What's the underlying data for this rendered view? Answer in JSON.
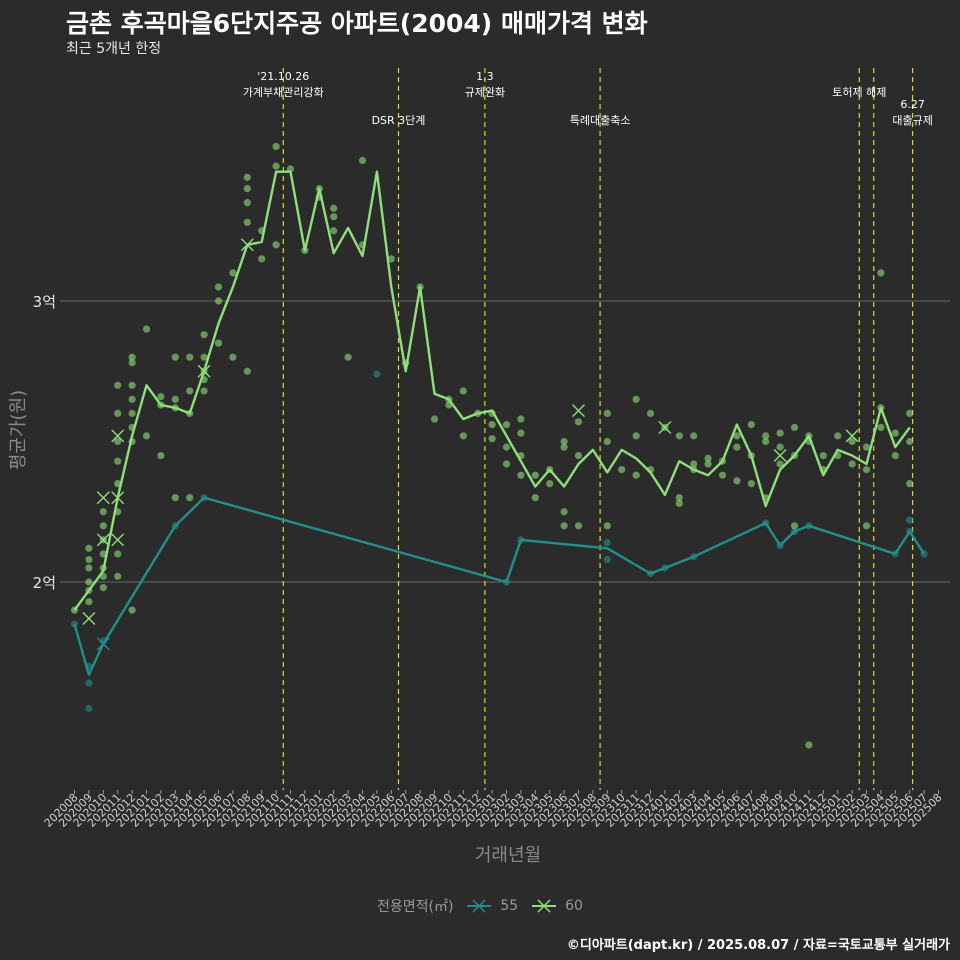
{
  "header": {
    "title": "금촌 후곡마을6단지주공 아파트(2004) 매매가격 변화",
    "subtitle": "최근 5개년 한정"
  },
  "caption": "©디아파트(dapt.kr) / 2025.08.07 / 자료=국토교통부 실거래가",
  "legend": {
    "title": "전용면적(㎡)"
  },
  "colors": {
    "background": "#2b2b2b",
    "s55": "#21908d",
    "s60": "#8fe07a",
    "event_line": "#d8dc2a",
    "grid": "#6a6a6a"
  },
  "chart_data": {
    "type": "line",
    "xlabel": "거래년월",
    "ylabel": "평균가(원)",
    "x": [
      "202008",
      "202009",
      "202010",
      "202011",
      "202012",
      "202101",
      "202102",
      "202103",
      "202104",
      "202105",
      "202106",
      "202107",
      "202108",
      "202109",
      "202110",
      "202111",
      "202112",
      "202201",
      "202202",
      "202203",
      "202204",
      "202205",
      "202206",
      "202207",
      "202208",
      "202209",
      "202210",
      "202211",
      "202212",
      "202301",
      "202302",
      "202303",
      "202304",
      "202305",
      "202306",
      "202307",
      "202308",
      "202309",
      "202310",
      "202311",
      "202312",
      "202401",
      "202402",
      "202403",
      "202404",
      "202405",
      "202406",
      "202407",
      "202408",
      "202409",
      "202410",
      "202411",
      "202412",
      "202501",
      "202502",
      "202503",
      "202504",
      "202505",
      "202506",
      "202507",
      "202508"
    ],
    "ylim": [
      1.25,
      3.55
    ],
    "yticks": [
      {
        "value": 2,
        "label": "2억"
      },
      {
        "value": 3,
        "label": "3억"
      }
    ],
    "grid": true,
    "legend_position": "bottom",
    "series": [
      {
        "name": "55",
        "points": [
          [
            0,
            1.85
          ],
          [
            1,
            1.67
          ],
          [
            2,
            1.78
          ],
          [
            7,
            2.2
          ],
          [
            9,
            2.3
          ],
          [
            30,
            2.0
          ],
          [
            31,
            2.15
          ],
          [
            37,
            2.12
          ],
          [
            40,
            2.03
          ],
          [
            41,
            2.05
          ],
          [
            43,
            2.09
          ],
          [
            48,
            2.21
          ],
          [
            49,
            2.13
          ],
          [
            50,
            2.18
          ],
          [
            51,
            2.2
          ],
          [
            57,
            2.1
          ],
          [
            58,
            2.18
          ],
          [
            59,
            2.1
          ]
        ],
        "scatter": [
          [
            0,
            1.85
          ],
          [
            1,
            1.64
          ],
          [
            1,
            1.55
          ],
          [
            1,
            1.7
          ],
          [
            2,
            1.79
          ],
          [
            7,
            2.2
          ],
          [
            9,
            2.3
          ],
          [
            21,
            2.74
          ],
          [
            30,
            2.0
          ],
          [
            31,
            2.15
          ],
          [
            37,
            2.14
          ],
          [
            37,
            2.08
          ],
          [
            40,
            2.03
          ],
          [
            41,
            2.05
          ],
          [
            43,
            2.09
          ],
          [
            48,
            2.21
          ],
          [
            49,
            2.13
          ],
          [
            50,
            2.18
          ],
          [
            51,
            2.2
          ],
          [
            57,
            2.1
          ],
          [
            58,
            2.18
          ],
          [
            58,
            2.22
          ],
          [
            59,
            2.1
          ]
        ],
        "cross": [
          [
            2,
            1.78
          ]
        ]
      },
      {
        "name": "60",
        "points": [
          [
            0,
            1.9
          ],
          [
            1,
            1.97
          ],
          [
            2,
            2.04
          ],
          [
            3,
            2.3
          ],
          [
            4,
            2.52
          ],
          [
            5,
            2.7
          ],
          [
            6,
            2.63
          ],
          [
            7,
            2.62
          ],
          [
            8,
            2.6
          ],
          [
            9,
            2.75
          ],
          [
            10,
            2.92
          ],
          [
            11,
            3.05
          ],
          [
            12,
            3.2
          ],
          [
            13,
            3.21
          ],
          [
            14,
            3.46
          ],
          [
            15,
            3.46
          ],
          [
            16,
            3.18
          ],
          [
            17,
            3.4
          ],
          [
            18,
            3.17
          ],
          [
            19,
            3.26
          ],
          [
            20,
            3.16
          ],
          [
            21,
            3.46
          ],
          [
            22,
            3.05
          ],
          [
            23,
            2.75
          ],
          [
            24,
            3.05
          ],
          [
            25,
            2.67
          ],
          [
            26,
            2.65
          ],
          [
            27,
            2.58
          ],
          [
            28,
            2.6
          ],
          [
            29,
            2.61
          ],
          [
            30,
            2.52
          ],
          [
            31,
            2.43
          ],
          [
            32,
            2.34
          ],
          [
            33,
            2.4
          ],
          [
            34,
            2.34
          ],
          [
            35,
            2.42
          ],
          [
            36,
            2.47
          ],
          [
            37,
            2.39
          ],
          [
            38,
            2.47
          ],
          [
            39,
            2.44
          ],
          [
            40,
            2.39
          ],
          [
            41,
            2.31
          ],
          [
            42,
            2.43
          ],
          [
            43,
            2.4
          ],
          [
            44,
            2.38
          ],
          [
            45,
            2.43
          ],
          [
            46,
            2.56
          ],
          [
            47,
            2.45
          ],
          [
            48,
            2.27
          ],
          [
            49,
            2.4
          ],
          [
            50,
            2.45
          ],
          [
            51,
            2.52
          ],
          [
            52,
            2.38
          ],
          [
            53,
            2.47
          ],
          [
            54,
            2.45
          ],
          [
            55,
            2.42
          ],
          [
            56,
            2.62
          ],
          [
            57,
            2.48
          ],
          [
            58,
            2.55
          ]
        ],
        "scatter": [
          [
            0,
            1.9
          ],
          [
            1,
            1.93
          ],
          [
            1,
            1.97
          ],
          [
            1,
            2.0
          ],
          [
            1,
            2.05
          ],
          [
            1,
            2.08
          ],
          [
            1,
            2.12
          ],
          [
            2,
            1.98
          ],
          [
            2,
            2.02
          ],
          [
            2,
            2.05
          ],
          [
            2,
            2.1
          ],
          [
            2,
            2.15
          ],
          [
            2,
            2.2
          ],
          [
            2,
            2.25
          ],
          [
            3,
            2.02
          ],
          [
            3,
            2.1
          ],
          [
            3,
            2.25
          ],
          [
            3,
            2.35
          ],
          [
            3,
            2.43
          ],
          [
            3,
            2.5
          ],
          [
            3,
            2.6
          ],
          [
            3,
            2.7
          ],
          [
            4,
            1.9
          ],
          [
            4,
            2.5
          ],
          [
            4,
            2.55
          ],
          [
            4,
            2.6
          ],
          [
            4,
            2.65
          ],
          [
            4,
            2.7
          ],
          [
            4,
            2.78
          ],
          [
            4,
            2.8
          ],
          [
            5,
            2.52
          ],
          [
            5,
            2.9
          ],
          [
            6,
            2.45
          ],
          [
            6,
            2.63
          ],
          [
            6,
            2.66
          ],
          [
            7,
            2.3
          ],
          [
            7,
            2.62
          ],
          [
            7,
            2.65
          ],
          [
            7,
            2.8
          ],
          [
            8,
            2.3
          ],
          [
            8,
            2.6
          ],
          [
            8,
            2.68
          ],
          [
            8,
            2.8
          ],
          [
            9,
            2.68
          ],
          [
            9,
            2.72
          ],
          [
            9,
            2.75
          ],
          [
            9,
            2.8
          ],
          [
            9,
            2.88
          ],
          [
            10,
            2.85
          ],
          [
            10,
            3.0
          ],
          [
            10,
            3.05
          ],
          [
            11,
            2.8
          ],
          [
            11,
            3.1
          ],
          [
            12,
            2.75
          ],
          [
            12,
            3.28
          ],
          [
            12,
            3.35
          ],
          [
            12,
            3.4
          ],
          [
            12,
            3.44
          ],
          [
            13,
            3.15
          ],
          [
            13,
            3.25
          ],
          [
            14,
            3.55
          ],
          [
            14,
            3.48
          ],
          [
            14,
            3.2
          ],
          [
            15,
            3.47
          ],
          [
            16,
            3.18
          ],
          [
            17,
            3.4
          ],
          [
            17,
            3.37
          ],
          [
            18,
            3.3
          ],
          [
            18,
            3.33
          ],
          [
            18,
            3.25
          ],
          [
            19,
            2.8
          ],
          [
            20,
            3.5
          ],
          [
            20,
            3.2
          ],
          [
            22,
            3.15
          ],
          [
            23,
            2.78
          ],
          [
            24,
            3.05
          ],
          [
            25,
            2.58
          ],
          [
            26,
            2.65
          ],
          [
            26,
            2.63
          ],
          [
            27,
            2.68
          ],
          [
            27,
            2.52
          ],
          [
            28,
            2.6
          ],
          [
            29,
            2.6
          ],
          [
            29,
            2.56
          ],
          [
            29,
            2.51
          ],
          [
            30,
            2.56
          ],
          [
            30,
            2.48
          ],
          [
            30,
            2.42
          ],
          [
            31,
            2.58
          ],
          [
            31,
            2.53
          ],
          [
            31,
            2.45
          ],
          [
            31,
            2.38
          ],
          [
            32,
            2.38
          ],
          [
            32,
            2.3
          ],
          [
            33,
            2.35
          ],
          [
            33,
            2.4
          ],
          [
            34,
            2.5
          ],
          [
            34,
            2.48
          ],
          [
            34,
            2.25
          ],
          [
            34,
            2.2
          ],
          [
            35,
            2.57
          ],
          [
            35,
            2.45
          ],
          [
            35,
            2.2
          ],
          [
            37,
            2.6
          ],
          [
            37,
            2.5
          ],
          [
            37,
            2.2
          ],
          [
            38,
            2.4
          ],
          [
            39,
            2.65
          ],
          [
            39,
            2.52
          ],
          [
            39,
            2.38
          ],
          [
            40,
            2.6
          ],
          [
            40,
            2.4
          ],
          [
            41,
            2.55
          ],
          [
            42,
            2.28
          ],
          [
            42,
            2.3
          ],
          [
            42,
            2.52
          ],
          [
            43,
            2.42
          ],
          [
            43,
            2.4
          ],
          [
            43,
            2.52
          ],
          [
            44,
            2.44
          ],
          [
            44,
            2.42
          ],
          [
            45,
            2.38
          ],
          [
            45,
            2.43
          ],
          [
            46,
            2.52
          ],
          [
            46,
            2.48
          ],
          [
            46,
            2.36
          ],
          [
            47,
            2.56
          ],
          [
            47,
            2.45
          ],
          [
            47,
            2.35
          ],
          [
            48,
            2.52
          ],
          [
            48,
            2.5
          ],
          [
            48,
            2.3
          ],
          [
            49,
            2.53
          ],
          [
            49,
            2.48
          ],
          [
            49,
            2.42
          ],
          [
            50,
            2.55
          ],
          [
            50,
            2.45
          ],
          [
            50,
            2.2
          ],
          [
            51,
            2.52
          ],
          [
            51,
            2.5
          ],
          [
            51,
            1.42
          ],
          [
            52,
            2.45
          ],
          [
            52,
            2.4
          ],
          [
            53,
            2.45
          ],
          [
            53,
            2.52
          ],
          [
            54,
            2.5
          ],
          [
            54,
            2.42
          ],
          [
            55,
            2.48
          ],
          [
            55,
            2.4
          ],
          [
            55,
            2.2
          ],
          [
            56,
            2.62
          ],
          [
            56,
            2.55
          ],
          [
            56,
            3.1
          ],
          [
            57,
            2.53
          ],
          [
            57,
            2.45
          ],
          [
            58,
            2.6
          ],
          [
            58,
            2.5
          ],
          [
            58,
            2.35
          ]
        ],
        "cross": [
          [
            1,
            1.87
          ],
          [
            2,
            2.3
          ],
          [
            2,
            2.15
          ],
          [
            3,
            2.52
          ],
          [
            3,
            2.3
          ],
          [
            3,
            2.15
          ],
          [
            9,
            2.75
          ],
          [
            12,
            3.2
          ],
          [
            35,
            2.61
          ],
          [
            41,
            2.55
          ],
          [
            49,
            2.45
          ],
          [
            54,
            2.52
          ]
        ]
      }
    ],
    "events": [
      {
        "x": 14.5,
        "label": [
          "'21.10.26",
          "가계부채관리강화"
        ],
        "row": 0
      },
      {
        "x": 22.5,
        "label": [
          "DSR 3단계"
        ],
        "row": 1
      },
      {
        "x": 28.5,
        "label": [
          "1.3",
          "규제완화"
        ],
        "row": 0
      },
      {
        "x": 36.5,
        "label": [
          "특례대출축소"
        ],
        "row": 1
      },
      {
        "x": 54.5,
        "label": [
          "토허제 해제"
        ],
        "row": 0
      },
      {
        "x": 55.5,
        "label": [],
        "row": 0
      },
      {
        "x": 58.2,
        "label": [
          "6.27",
          "대출규제"
        ],
        "row": 1
      }
    ]
  }
}
